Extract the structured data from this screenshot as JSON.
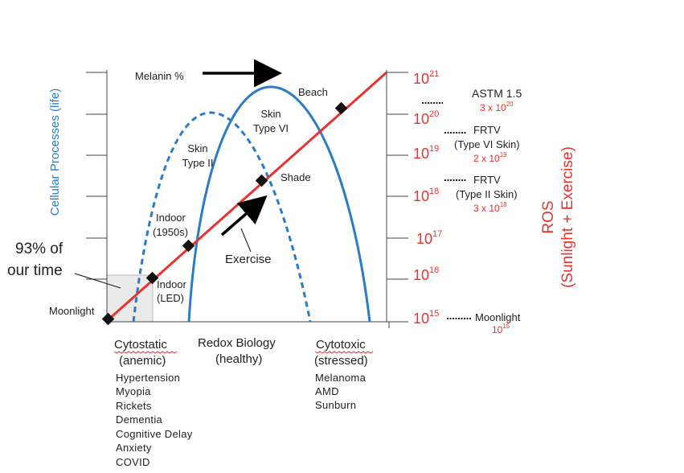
{
  "axes": {
    "left_title": "Cellular Processes (life)",
    "right_title_line1": "ROS",
    "right_title_line2": "(Sunlight + Exercise)",
    "right_ticks": [
      {
        "base": "10",
        "exp": "21"
      },
      {
        "base": "10",
        "exp": "20"
      },
      {
        "base": "10",
        "exp": "19"
      },
      {
        "base": "10",
        "exp": "18"
      },
      {
        "base": "10",
        "exp": "17"
      },
      {
        "base": "10",
        "exp": "16"
      },
      {
        "base": "10",
        "exp": "15"
      }
    ]
  },
  "melanin_label": "Melanin %",
  "curves": {
    "type_vi_line1": "Skin",
    "type_vi_line2": "Type VI",
    "type_ii_line1": "Skin",
    "type_ii_line2": "Type II"
  },
  "points": {
    "moonlight": "Moonlight",
    "indoor_led_line1": "Indoor",
    "indoor_led_line2": "(LED)",
    "indoor_1950_line1": "Indoor",
    "indoor_1950_line2": "(1950s)",
    "shade": "Shade",
    "beach": "Beach",
    "exercise": "Exercise"
  },
  "callout": {
    "line1": "93% of",
    "line2": "our time"
  },
  "reference": {
    "astm_label": "ASTM 1.5",
    "astm_value": {
      "mant": "3 x 10",
      "exp": "20"
    },
    "frtv_vi_line1": "FRTV",
    "frtv_vi_line2": "(Type VI Skin)",
    "frtv_vi_value": {
      "mant": "2 x 10",
      "exp": "19"
    },
    "frtv_ii_line1": "FRTV",
    "frtv_ii_line2": "(Type II Skin)",
    "frtv_ii_value": {
      "mant": "3 x 10",
      "exp": "18"
    },
    "moonlight_label": "Moonlight",
    "moonlight_value": {
      "mant": "10",
      "exp": "15"
    }
  },
  "zones": {
    "cytostatic_title": "Cytostatic",
    "cytostatic_sub": "(anemic)",
    "cytostatic_items": [
      "Hypertension",
      "Myopia",
      "Rickets",
      "Dementia",
      "Cognitive Delay",
      "Anxiety",
      "COVID"
    ],
    "redox_title": "Redox Biology",
    "redox_sub": "(healthy)",
    "cytotoxic_title": "Cytotoxic",
    "cytotoxic_sub": "(stressed)",
    "cytotoxic_items": [
      "Melanoma",
      "AMD",
      "Sunburn"
    ]
  },
  "colors": {
    "red": "#e8322e",
    "blue": "#2a7bc8",
    "axis": "#222222",
    "box": "#eaeaea"
  }
}
